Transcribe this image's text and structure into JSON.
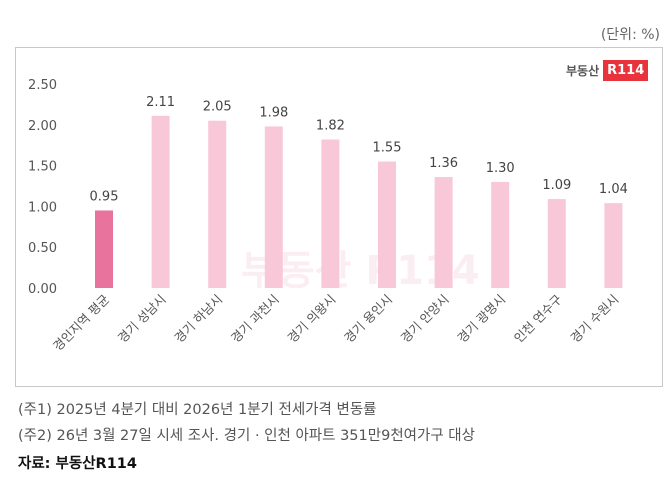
{
  "unit_label": "(단위: %)",
  "logo": {
    "text": "부동산",
    "badge": "R114"
  },
  "notes": [
    "(주1) 2025년 4분기 대비 2026년 1분기 전세가격 변동률",
    "(주2) 26년 3월 27일 시세 조사. 경기 · 인천 아파트 351만9천여가구 대상"
  ],
  "source": "자료: 부동산R114",
  "colors": {
    "highlight": "#e8739c",
    "bar": "#f8c8d8"
  },
  "chart_data": {
    "type": "bar",
    "categories": [
      "경인지역 평균",
      "경기 성남시",
      "경기 하남시",
      "경기 과천시",
      "경기 의왕시",
      "경기 용인시",
      "경기 안양시",
      "경기 광명시",
      "인천 연수구",
      "경기 수원시"
    ],
    "values": [
      0.95,
      2.11,
      2.05,
      1.98,
      1.82,
      1.55,
      1.36,
      1.3,
      1.09,
      1.04
    ],
    "value_labels": [
      "0.95",
      "2.11",
      "2.05",
      "1.98",
      "1.82",
      "1.55",
      "1.36",
      "1.30",
      "1.09",
      "1.04"
    ],
    "ylim": [
      0,
      2.5
    ],
    "yticks": [
      "0.00",
      "0.50",
      "1.00",
      "1.50",
      "2.00",
      "2.50"
    ],
    "grid": false,
    "highlight_index": 0
  }
}
